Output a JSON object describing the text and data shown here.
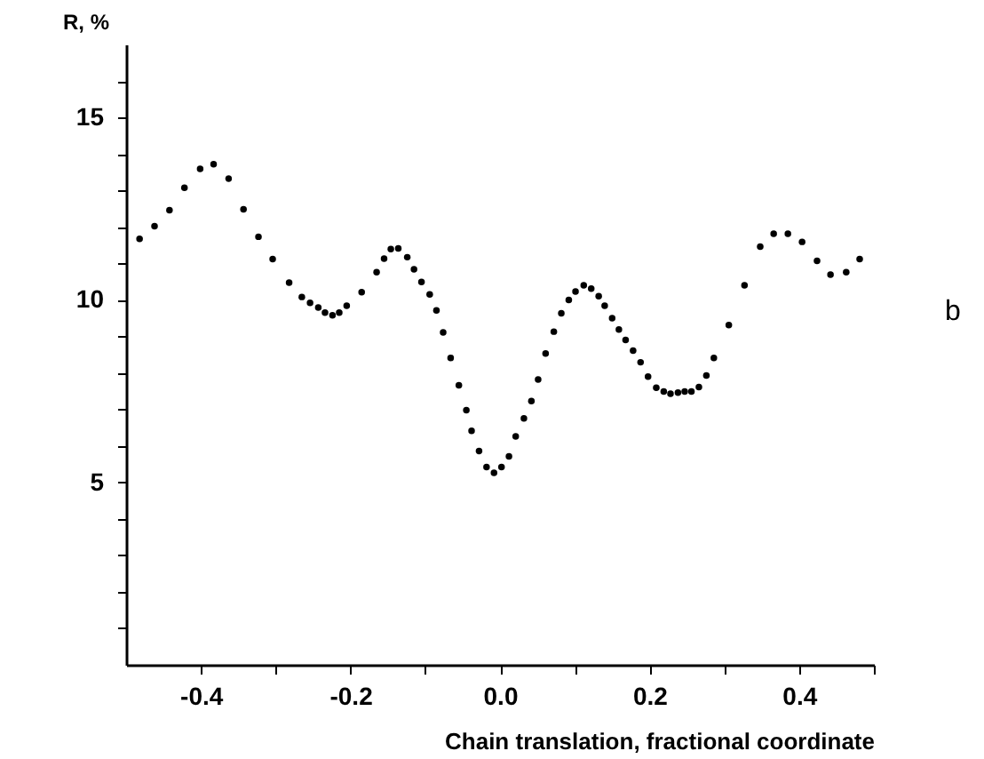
{
  "chart_data": {
    "type": "scatter",
    "xlabel": "Chain translation, fractional coordinate",
    "ylabel": "R, %",
    "annotations": [
      "b"
    ],
    "xlim": [
      -0.5,
      0.5
    ],
    "ylim": [
      0,
      17
    ],
    "xticks": [
      -0.4,
      {
        "value": -0.3,
        "label": null
      },
      -0.2,
      {
        "value": -0.1,
        "label": null
      },
      {
        "value": 0,
        "label": "0.0"
      },
      {
        "value": 0.1,
        "label": null
      },
      0.2,
      {
        "value": 0.3,
        "label": null
      },
      0.4,
      {
        "value": 0.5,
        "label": null
      }
    ],
    "yticks": [
      {
        "value": 1,
        "label": null
      },
      {
        "value": 2,
        "label": null
      },
      {
        "value": 3,
        "label": null
      },
      {
        "value": 4,
        "label": null
      },
      5,
      {
        "value": 6,
        "label": null
      },
      {
        "value": 7,
        "label": null
      },
      {
        "value": 8,
        "label": null
      },
      {
        "value": 9,
        "label": null
      },
      10,
      {
        "value": 11,
        "label": null
      },
      {
        "value": 12,
        "label": null
      },
      {
        "value": 13,
        "label": null
      },
      {
        "value": 14,
        "label": null
      },
      15,
      {
        "value": 16,
        "label": null
      }
    ],
    "grid": false,
    "marker": "circle",
    "series": [
      {
        "color": "#000000",
        "x": [
          -0.482,
          -0.462,
          -0.442,
          -0.422,
          -0.401,
          -0.383,
          -0.363,
          -0.343,
          -0.323,
          -0.304,
          -0.282,
          -0.265,
          -0.254,
          -0.243,
          -0.234,
          -0.224,
          -0.215,
          -0.205,
          -0.185,
          -0.165,
          -0.155,
          -0.146,
          -0.136,
          -0.124,
          -0.115,
          -0.105,
          -0.094,
          -0.085,
          -0.076,
          -0.066,
          -0.055,
          -0.045,
          -0.038,
          -0.028,
          -0.018,
          -0.008,
          0.002,
          0.012,
          0.021,
          0.032,
          0.042,
          0.051,
          0.061,
          0.072,
          0.082,
          0.092,
          0.101,
          0.112,
          0.122,
          0.132,
          0.14,
          0.15,
          0.159,
          0.168,
          0.178,
          0.188,
          0.198,
          0.209,
          0.219,
          0.228,
          0.238,
          0.247,
          0.256,
          0.266,
          0.276,
          0.286,
          0.306,
          0.327,
          0.348,
          0.366,
          0.385,
          0.404,
          0.424,
          0.442,
          0.463,
          0.481
        ],
        "values": [
          11.67,
          12.02,
          12.46,
          13.07,
          13.59,
          13.72,
          13.32,
          12.48,
          11.73,
          11.12,
          10.47,
          10.08,
          9.92,
          9.79,
          9.65,
          9.58,
          9.65,
          9.84,
          10.21,
          10.76,
          11.13,
          11.39,
          11.41,
          11.17,
          10.84,
          10.49,
          10.15,
          9.71,
          9.11,
          8.41,
          7.66,
          6.98,
          6.41,
          5.86,
          5.42,
          5.26,
          5.42,
          5.71,
          6.26,
          6.75,
          7.23,
          7.82,
          8.53,
          9.13,
          9.63,
          10.0,
          10.23,
          10.4,
          10.31,
          10.1,
          9.84,
          9.5,
          9.19,
          8.9,
          8.61,
          8.29,
          7.9,
          7.59,
          7.49,
          7.43,
          7.46,
          7.49,
          7.49,
          7.61,
          7.93,
          8.41,
          9.31,
          10.4,
          11.46,
          11.81,
          11.81,
          11.59,
          11.07,
          10.69,
          10.76,
          11.12
        ]
      }
    ]
  }
}
